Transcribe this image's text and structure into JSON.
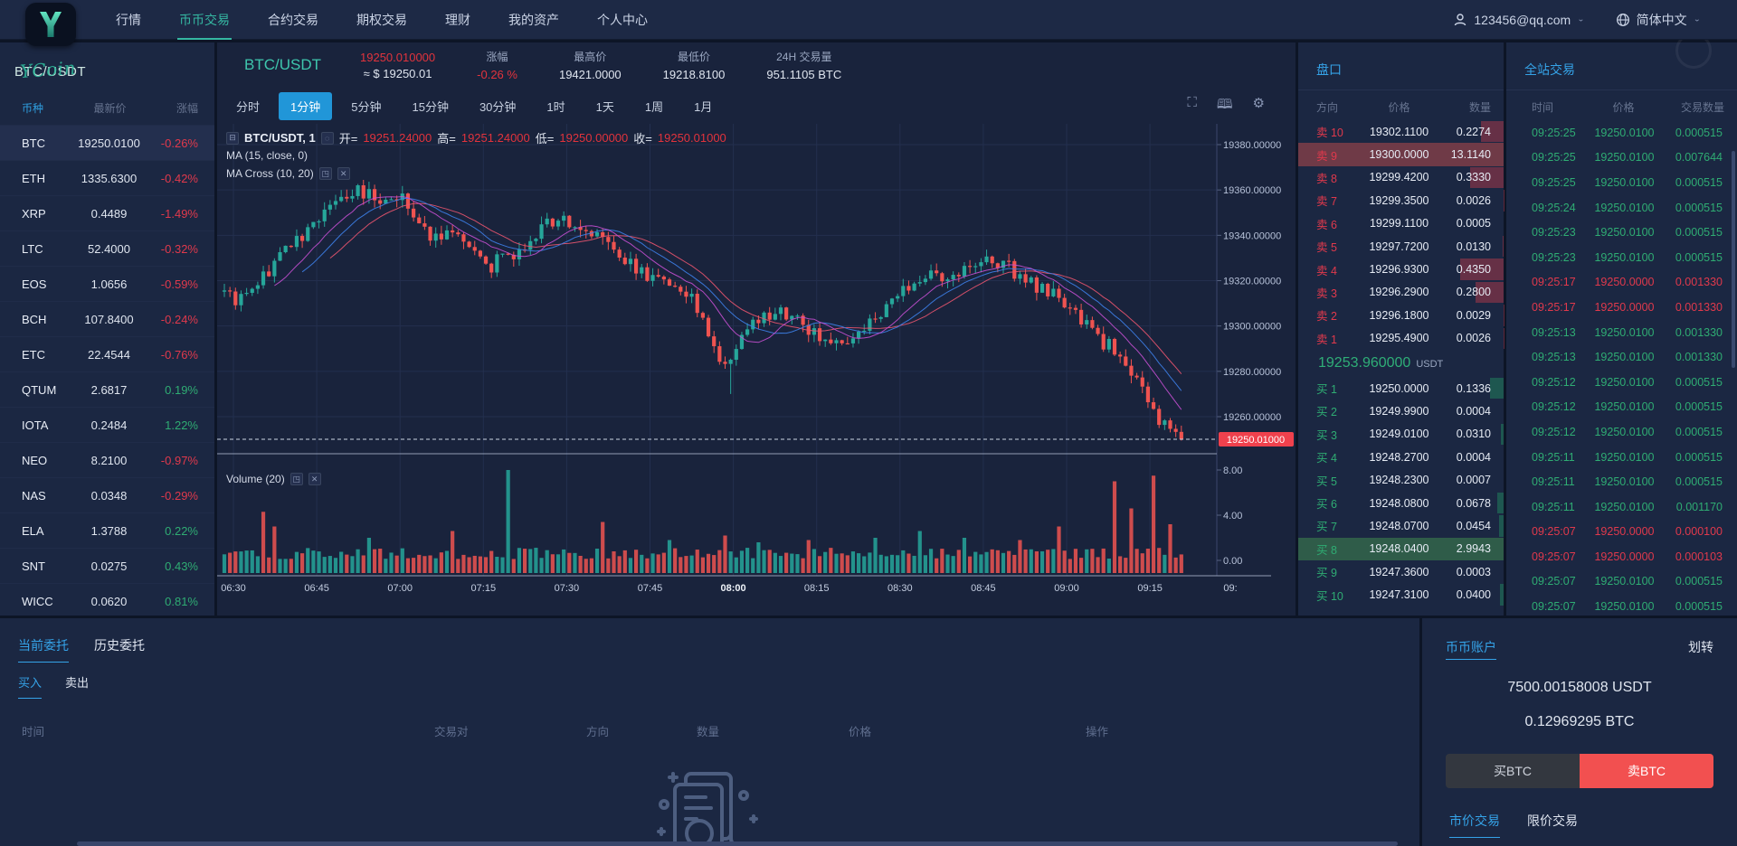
{
  "colors": {
    "accent_blue": "#35a3e8",
    "teal": "#3ec6ad",
    "up_green": "#2fac73",
    "down_red": "#e0394c",
    "candle_up": "#26a69a",
    "candle_down": "#ef5350",
    "sell_btn": "#f25050",
    "tag_red": "#f0414d",
    "ask_highlight": "#6f3a47",
    "bid_highlight": "#2f5c49"
  },
  "topnav": {
    "logo_letter": "Y",
    "items": [
      {
        "label": "行情",
        "active": false
      },
      {
        "label": "币币交易",
        "active": true
      },
      {
        "label": "合约交易",
        "active": false
      },
      {
        "label": "期权交易",
        "active": false
      },
      {
        "label": "理财",
        "active": false
      },
      {
        "label": "我的资产",
        "active": false
      },
      {
        "label": "个人中心",
        "active": false
      }
    ],
    "account": "123456@qq.com",
    "language": "简体中文"
  },
  "sidebar": {
    "title": "BTC/USDT",
    "watermark": "YCoin",
    "columns": [
      "币种",
      "最新价",
      "涨幅"
    ],
    "coins": [
      {
        "symbol": "BTC",
        "price": "19250.0100",
        "change": "-0.26%",
        "dir": "down",
        "selected": true
      },
      {
        "symbol": "ETH",
        "price": "1335.6300",
        "change": "-0.42%",
        "dir": "down"
      },
      {
        "symbol": "XRP",
        "price": "0.4489",
        "change": "-1.49%",
        "dir": "down"
      },
      {
        "symbol": "LTC",
        "price": "52.4000",
        "change": "-0.32%",
        "dir": "down"
      },
      {
        "symbol": "EOS",
        "price": "1.0656",
        "change": "-0.59%",
        "dir": "down"
      },
      {
        "symbol": "BCH",
        "price": "107.8400",
        "change": "-0.24%",
        "dir": "down"
      },
      {
        "symbol": "ETC",
        "price": "22.4544",
        "change": "-0.76%",
        "dir": "down"
      },
      {
        "symbol": "QTUM",
        "price": "2.6817",
        "change": "0.19%",
        "dir": "up"
      },
      {
        "symbol": "IOTA",
        "price": "0.2484",
        "change": "1.22%",
        "dir": "up"
      },
      {
        "symbol": "NEO",
        "price": "8.2100",
        "change": "-0.97%",
        "dir": "down"
      },
      {
        "symbol": "NAS",
        "price": "0.0348",
        "change": "-0.29%",
        "dir": "down"
      },
      {
        "symbol": "ELA",
        "price": "1.3788",
        "change": "0.22%",
        "dir": "up"
      },
      {
        "symbol": "SNT",
        "price": "0.0275",
        "change": "0.43%",
        "dir": "up"
      },
      {
        "symbol": "WICC",
        "price": "0.0620",
        "change": "0.81%",
        "dir": "up"
      }
    ]
  },
  "chart_header": {
    "pair": "BTC/USDT",
    "price": "19250.010000",
    "price_usd": "≈ $ 19250.01",
    "stats": [
      {
        "label": "涨幅",
        "value": "-0.26 %",
        "red": true
      },
      {
        "label": "最高价",
        "value": "19421.0000",
        "red": false
      },
      {
        "label": "最低价",
        "value": "19218.8100",
        "red": false
      },
      {
        "label": "24H 交易量",
        "value": "951.1105 BTC",
        "red": false
      }
    ],
    "timeframes": [
      "分时",
      "1分钟",
      "5分钟",
      "15分钟",
      "30分钟",
      "1时",
      "1天",
      "1周",
      "1月"
    ],
    "active_timeframe": "1分钟"
  },
  "chart_legend": {
    "collapse": "⊟",
    "title": "BTC/USDT, 1",
    "o_lbl": "开=",
    "o": "19251.24000",
    "h_lbl": "高=",
    "h": "19251.24000",
    "l_lbl": "低=",
    "l": "19250.00000",
    "c_lbl": "收=",
    "c": "19250.01000",
    "ma1": "MA (15, close, 0)",
    "ma2": "MA Cross (10, 20)",
    "volume": "Volume (20)"
  },
  "chart_data": {
    "type": "candlestick+volume",
    "pair": "BTC/USDT",
    "interval": "1分钟",
    "ohlc_legend": {
      "open": 19251.24,
      "high": 19251.24,
      "low": 19250.0,
      "close": 19250.01
    },
    "y_ticks": [
      19380,
      19360,
      19340,
      19320,
      19300,
      19280,
      19260
    ],
    "y_tick_labels": [
      "19380.00000",
      "19360.00000",
      "19340.00000",
      "19320.00000",
      "19300.00000",
      "19280.00000",
      "19260.00000"
    ],
    "last_price": 19250.01,
    "last_price_label": "19250.01000",
    "x_ticks": [
      "06:30",
      "06:45",
      "07:00",
      "07:15",
      "07:30",
      "07:45",
      "08:00",
      "08:15",
      "08:30",
      "08:45",
      "09:00",
      "09:15",
      "09:"
    ],
    "x_bold_tick": "08:00",
    "volume_ticks": [
      "8.00",
      "4.00",
      "0.00"
    ],
    "price_path": [
      [
        0,
        19315
      ],
      [
        4,
        19311
      ],
      [
        10,
        19328
      ],
      [
        18,
        19348
      ],
      [
        24,
        19360
      ],
      [
        28,
        19357
      ],
      [
        33,
        19356
      ],
      [
        38,
        19338
      ],
      [
        43,
        19342
      ],
      [
        49,
        19327
      ],
      [
        55,
        19335
      ],
      [
        61,
        19349
      ],
      [
        66,
        19344
      ],
      [
        72,
        19330
      ],
      [
        78,
        19322
      ],
      [
        85,
        19312
      ],
      [
        91,
        19282
      ],
      [
        95,
        19300
      ],
      [
        100,
        19307
      ],
      [
        106,
        19299
      ],
      [
        112,
        19292
      ],
      [
        117,
        19303
      ],
      [
        123,
        19315
      ],
      [
        128,
        19322
      ],
      [
        132,
        19320
      ],
      [
        137,
        19331
      ],
      [
        142,
        19326
      ],
      [
        147,
        19317
      ],
      [
        152,
        19311
      ],
      [
        157,
        19297
      ],
      [
        162,
        19287
      ],
      [
        166,
        19272
      ],
      [
        169,
        19259
      ],
      [
        172,
        19250.01
      ],
      [
        173,
        19250.01
      ]
    ],
    "deep_wick": {
      "index": 91,
      "low": 19270
    },
    "volume_spikes": [
      [
        7,
        4.3,
        "r"
      ],
      [
        9,
        3.0,
        "r"
      ],
      [
        26,
        2.0,
        "g"
      ],
      [
        41,
        2.6,
        "r"
      ],
      [
        51,
        8.0,
        "g"
      ],
      [
        68,
        3.4,
        "r"
      ],
      [
        80,
        1.8,
        "g"
      ],
      [
        90,
        2.2,
        "r"
      ],
      [
        96,
        1.6,
        "g"
      ],
      [
        105,
        1.8,
        "r"
      ],
      [
        117,
        2.0,
        "g"
      ],
      [
        125,
        2.6,
        "g"
      ],
      [
        133,
        2.0,
        "g"
      ],
      [
        143,
        1.8,
        "r"
      ],
      [
        150,
        3.0,
        "r"
      ],
      [
        160,
        7.0,
        "r"
      ],
      [
        163,
        4.6,
        "r"
      ],
      [
        167,
        7.5,
        "r"
      ],
      [
        170,
        3.2,
        "r"
      ]
    ],
    "ma_windows": {
      "ma15_color": "#3d7fe8",
      "ma10_color": "#c44fd0",
      "ma20_color": "#e8546e"
    }
  },
  "orderbook": {
    "title": "盘口",
    "columns": [
      "方向",
      "价格",
      "数量"
    ],
    "asks": [
      {
        "dir": "卖 10",
        "price": "19302.1100",
        "qty": "0.2274",
        "q": 0.2274
      },
      {
        "dir": "卖 9",
        "price": "19300.0000",
        "qty": "13.1140",
        "q": 13.114,
        "highlight": true
      },
      {
        "dir": "卖 8",
        "price": "19299.4200",
        "qty": "0.3330",
        "q": 0.333
      },
      {
        "dir": "卖 7",
        "price": "19299.3500",
        "qty": "0.0026",
        "q": 0.0026
      },
      {
        "dir": "卖 6",
        "price": "19299.1100",
        "qty": "0.0005",
        "q": 0.0005
      },
      {
        "dir": "卖 5",
        "price": "19297.7200",
        "qty": "0.0130",
        "q": 0.013
      },
      {
        "dir": "卖 4",
        "price": "19296.9300",
        "qty": "0.4350",
        "q": 0.435
      },
      {
        "dir": "卖 3",
        "price": "19296.2900",
        "qty": "0.2800",
        "q": 0.28
      },
      {
        "dir": "卖 2",
        "price": "19296.1800",
        "qty": "0.0029",
        "q": 0.0029
      },
      {
        "dir": "卖 1",
        "price": "19295.4900",
        "qty": "0.0026",
        "q": 0.0026
      }
    ],
    "mid_price": "19253.960000",
    "mid_unit": "USDT",
    "bids": [
      {
        "dir": "买 1",
        "price": "19250.0000",
        "qty": "0.1336",
        "q": 0.1336
      },
      {
        "dir": "买 2",
        "price": "19249.9900",
        "qty": "0.0004",
        "q": 0.0004
      },
      {
        "dir": "买 3",
        "price": "19249.0100",
        "qty": "0.0310",
        "q": 0.031
      },
      {
        "dir": "买 4",
        "price": "19248.2700",
        "qty": "0.0004",
        "q": 0.0004
      },
      {
        "dir": "买 5",
        "price": "19248.2300",
        "qty": "0.0007",
        "q": 0.0007
      },
      {
        "dir": "买 6",
        "price": "19248.0800",
        "qty": "0.0678",
        "q": 0.0678
      },
      {
        "dir": "买 7",
        "price": "19248.0700",
        "qty": "0.0454",
        "q": 0.0454
      },
      {
        "dir": "买 8",
        "price": "19248.0400",
        "qty": "2.9943",
        "q": 2.9943,
        "highlight": true
      },
      {
        "dir": "买 9",
        "price": "19247.3600",
        "qty": "0.0003",
        "q": 0.0003
      },
      {
        "dir": "买 10",
        "price": "19247.3100",
        "qty": "0.0400",
        "q": 0.04
      }
    ]
  },
  "trades": {
    "title": "全站交易",
    "columns": [
      "时间",
      "价格",
      "交易数量"
    ],
    "rows": [
      {
        "time": "09:25:25",
        "price": "19250.0100",
        "qty": "0.000515",
        "dir": "up"
      },
      {
        "time": "09:25:25",
        "price": "19250.0100",
        "qty": "0.007644",
        "dir": "up"
      },
      {
        "time": "09:25:25",
        "price": "19250.0100",
        "qty": "0.000515",
        "dir": "up"
      },
      {
        "time": "09:25:24",
        "price": "19250.0100",
        "qty": "0.000515",
        "dir": "up"
      },
      {
        "time": "09:25:23",
        "price": "19250.0100",
        "qty": "0.000515",
        "dir": "up"
      },
      {
        "time": "09:25:23",
        "price": "19250.0100",
        "qty": "0.000515",
        "dir": "up"
      },
      {
        "time": "09:25:17",
        "price": "19250.0000",
        "qty": "0.001330",
        "dir": "down"
      },
      {
        "time": "09:25:17",
        "price": "19250.0000",
        "qty": "0.001330",
        "dir": "down"
      },
      {
        "time": "09:25:13",
        "price": "19250.0100",
        "qty": "0.001330",
        "dir": "up"
      },
      {
        "time": "09:25:13",
        "price": "19250.0100",
        "qty": "0.001330",
        "dir": "up"
      },
      {
        "time": "09:25:12",
        "price": "19250.0100",
        "qty": "0.000515",
        "dir": "up"
      },
      {
        "time": "09:25:12",
        "price": "19250.0100",
        "qty": "0.000515",
        "dir": "up"
      },
      {
        "time": "09:25:12",
        "price": "19250.0100",
        "qty": "0.000515",
        "dir": "up"
      },
      {
        "time": "09:25:11",
        "price": "19250.0100",
        "qty": "0.000515",
        "dir": "up"
      },
      {
        "time": "09:25:11",
        "price": "19250.0100",
        "qty": "0.000515",
        "dir": "up"
      },
      {
        "time": "09:25:11",
        "price": "19250.0100",
        "qty": "0.001170",
        "dir": "up"
      },
      {
        "time": "09:25:07",
        "price": "19250.0000",
        "qty": "0.000100",
        "dir": "down"
      },
      {
        "time": "09:25:07",
        "price": "19250.0000",
        "qty": "0.000103",
        "dir": "down"
      },
      {
        "time": "09:25:07",
        "price": "19250.0100",
        "qty": "0.000515",
        "dir": "up"
      },
      {
        "time": "09:25:07",
        "price": "19250.0100",
        "qty": "0.000515",
        "dir": "up"
      }
    ]
  },
  "orders_panel": {
    "tabs": [
      {
        "label": "当前委托",
        "active": true
      },
      {
        "label": "历史委托",
        "active": false
      }
    ],
    "subtabs": [
      {
        "label": "买入",
        "active": true
      },
      {
        "label": "卖出",
        "active": false
      }
    ],
    "columns": [
      {
        "label": "时间",
        "x": 24
      },
      {
        "label": "交易对",
        "x": 480
      },
      {
        "label": "方向",
        "x": 648
      },
      {
        "label": "数量",
        "x": 770
      },
      {
        "label": "价格",
        "x": 938
      },
      {
        "label": "操作",
        "x": 1200
      }
    ]
  },
  "account_panel": {
    "title": "币币账户",
    "transfer": "划转",
    "usdt_balance": "7500.00158008 USDT",
    "btc_balance": "0.12969295 BTC",
    "buy_label": "买BTC",
    "sell_label": "卖BTC",
    "tabs": [
      {
        "label": "市价交易",
        "active": true
      },
      {
        "label": "限价交易",
        "active": false
      }
    ]
  }
}
